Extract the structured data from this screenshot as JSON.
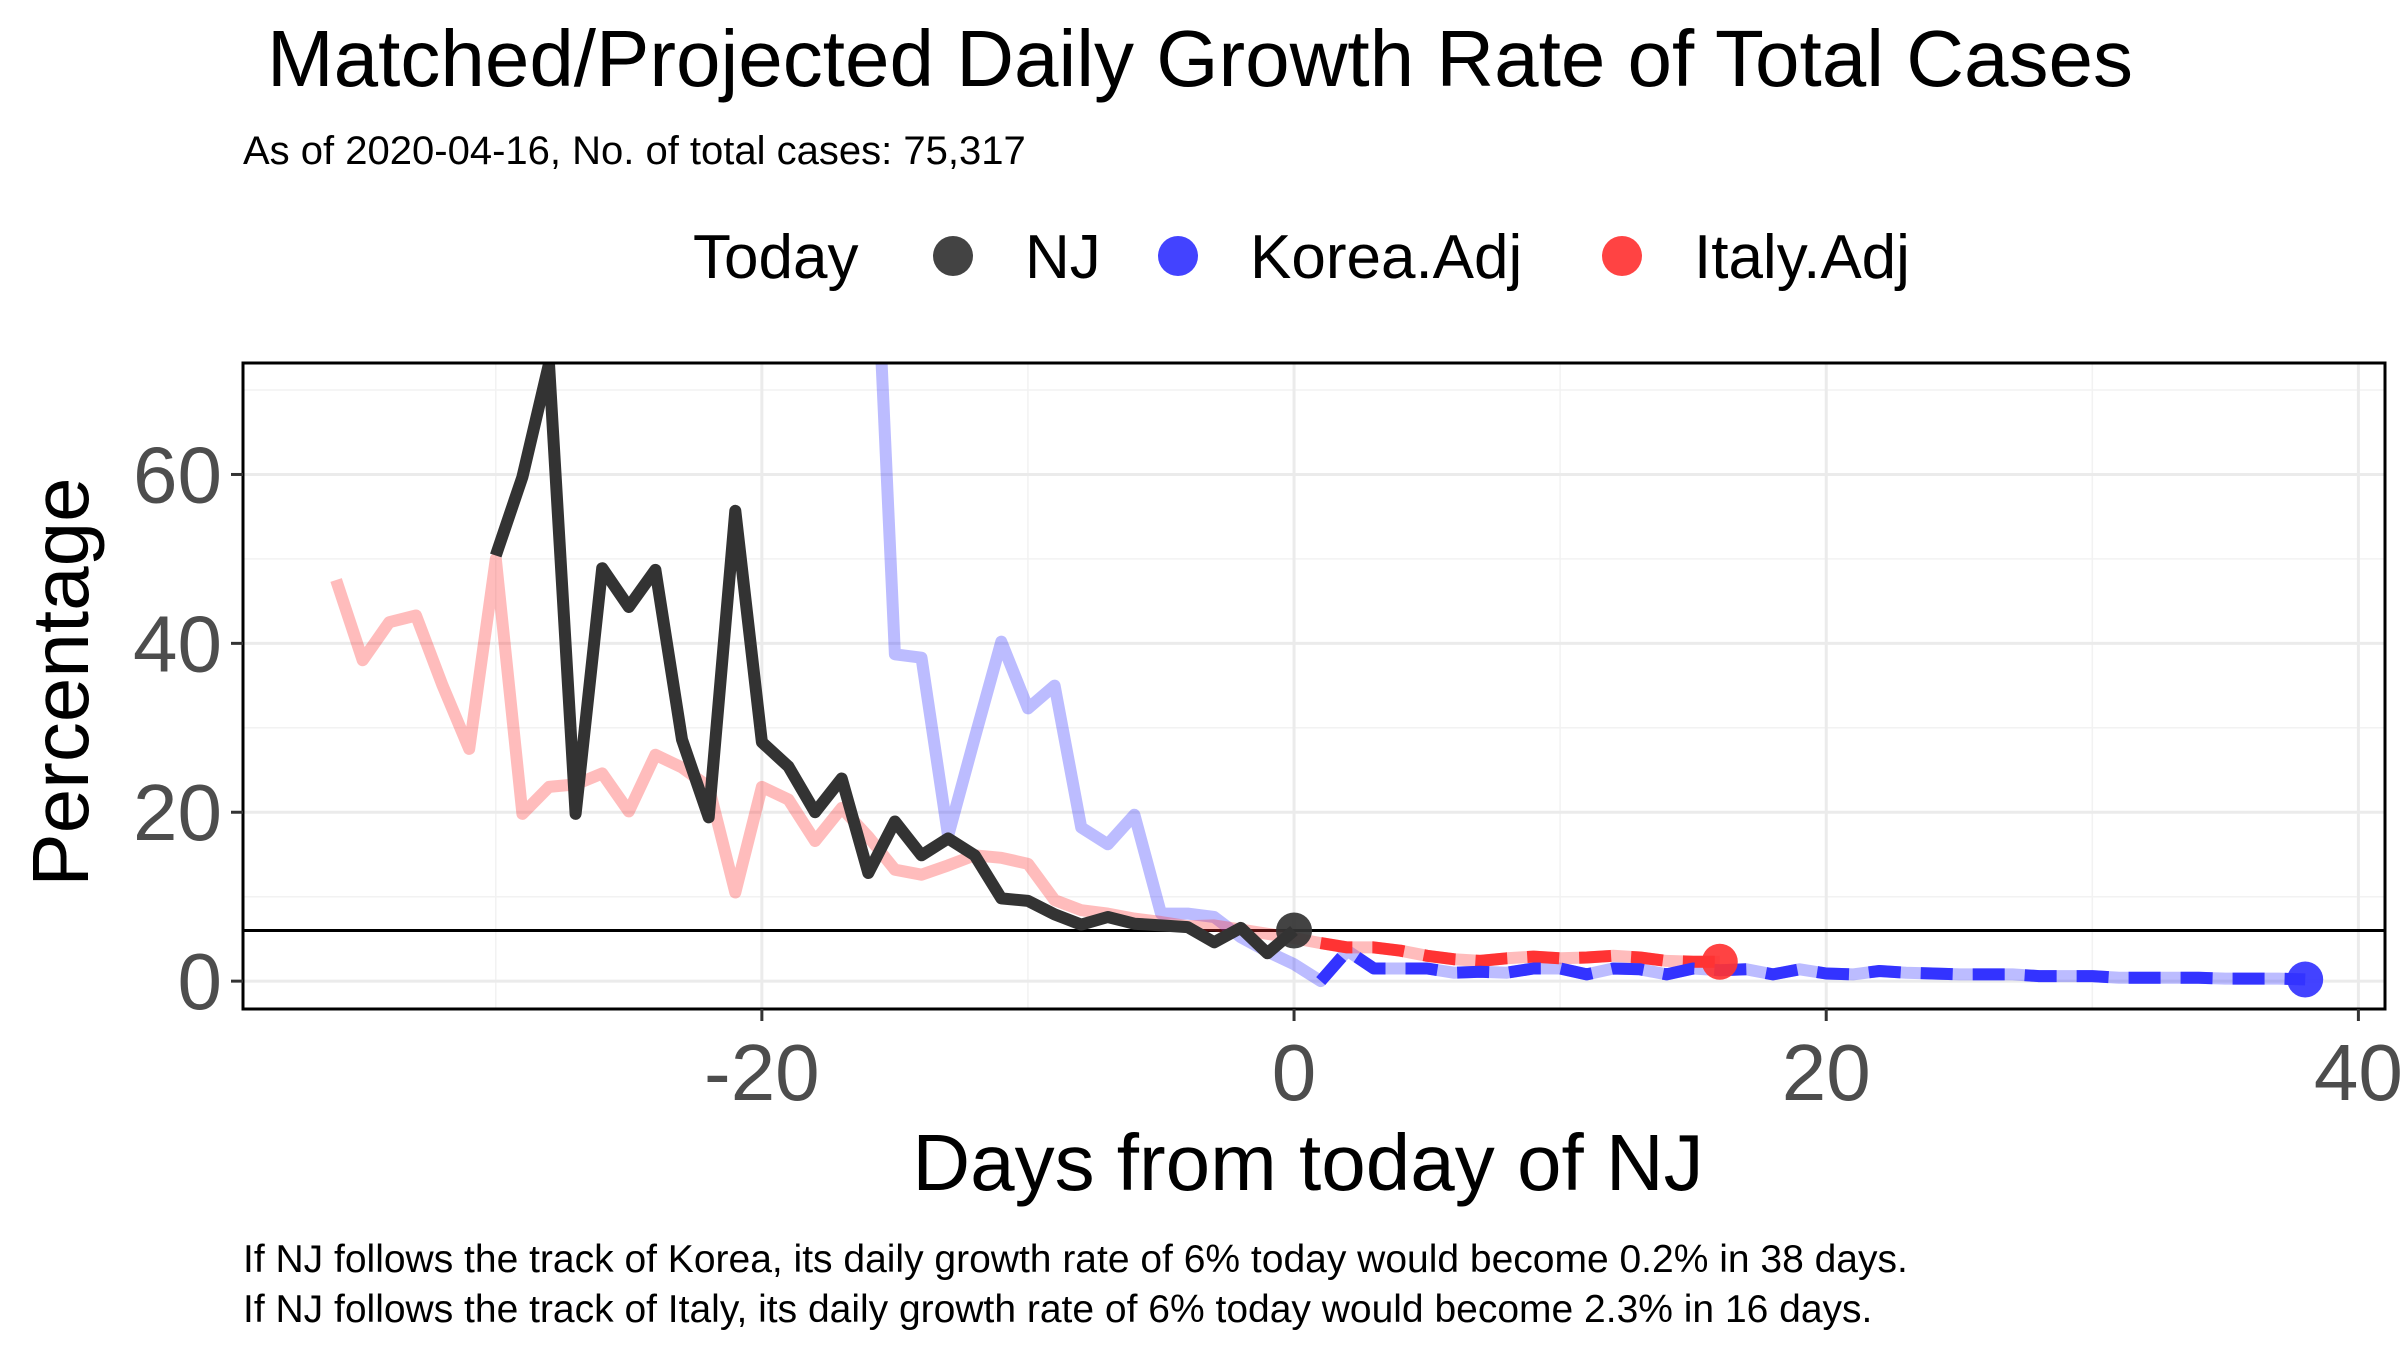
{
  "chart_data": {
    "type": "line",
    "title": "Matched/Projected Daily Growth Rate of Total Cases",
    "subtitle": "As of 2020-04-16, No. of total cases: 75,317",
    "xlabel": "Days from today of NJ",
    "ylabel": "Percentage",
    "xlim": [
      -39.5,
      41
    ],
    "ylim": [
      -3.3,
      73.2
    ],
    "x_ticks": [
      -20,
      0,
      20,
      40
    ],
    "x_tick_labels": [
      "-20",
      "0",
      "20",
      "40"
    ],
    "y_ticks": [
      0,
      20,
      40,
      60
    ],
    "y_tick_labels": [
      "0",
      "20",
      "40",
      "60"
    ],
    "grid": true,
    "legend_position": "top",
    "legend_title": "Today",
    "reference_line_y": 6,
    "series": [
      {
        "name": "NJ",
        "color": "#333333",
        "style": "solid",
        "opacity": 1.0,
        "x": [
          -30,
          -29,
          -28,
          -27,
          -26,
          -25,
          -24,
          -23,
          -22,
          -21,
          -20,
          -19,
          -18,
          -17,
          -16,
          -15,
          -14,
          -13,
          -12,
          -11,
          -10,
          -9,
          -8,
          -7,
          -6,
          -5,
          -4,
          -3,
          -2,
          -1,
          0
        ],
        "y": [
          50.4,
          59.7,
          73.1,
          19.8,
          48.9,
          44.3,
          48.7,
          28.6,
          19.4,
          55.7,
          28.3,
          25.4,
          20.0,
          24.0,
          12.8,
          18.9,
          14.9,
          16.9,
          14.9,
          9.8,
          9.5,
          7.9,
          6.7,
          7.6,
          6.8,
          6.6,
          6.4,
          4.6,
          6.3,
          3.3,
          6.0
        ],
        "today_point": {
          "x": 0,
          "y": 6.0
        }
      },
      {
        "name": "Korea.Adj",
        "color": "#3333ff",
        "style": "solid",
        "opacity": 0.33,
        "x": [
          -15.5,
          -15,
          -14,
          -13,
          -12,
          -11,
          -10,
          -9,
          -8,
          -7,
          -6,
          -5,
          -4,
          -3,
          -2,
          -1,
          0,
          1,
          2,
          3,
          4,
          5,
          6,
          7,
          8,
          9,
          10,
          11,
          12,
          13,
          14,
          15,
          16,
          17,
          18,
          19,
          20,
          21,
          22,
          23,
          24,
          25,
          26,
          27,
          28,
          29,
          30,
          31,
          32,
          33,
          34,
          35,
          36,
          37,
          38
        ],
        "y": [
          73.2,
          38.7,
          38.3,
          17.2,
          28.8,
          40.2,
          32.3,
          35.0,
          18.2,
          16.2,
          19.7,
          8.0,
          8.0,
          7.6,
          5.2,
          3.5,
          2.0,
          0.0,
          3.6,
          1.5,
          1.5,
          1.5,
          1.0,
          1.1,
          1.0,
          1.5,
          1.5,
          0.8,
          1.5,
          1.4,
          0.8,
          1.5,
          1.3,
          1.4,
          0.8,
          1.4,
          0.9,
          0.8,
          1.2,
          1.0,
          0.9,
          0.8,
          0.8,
          0.8,
          0.6,
          0.6,
          0.6,
          0.4,
          0.4,
          0.4,
          0.4,
          0.3,
          0.3,
          0.3,
          0.2
        ]
      },
      {
        "name": "Korea.Adj (projected)",
        "color": "#3333ff",
        "style": "dashed",
        "opacity": 1.0,
        "x": [
          1,
          2,
          3,
          4,
          5,
          6,
          7,
          8,
          9,
          10,
          11,
          12,
          13,
          14,
          15,
          16,
          17,
          18,
          19,
          20,
          21,
          22,
          23,
          24,
          25,
          26,
          27,
          28,
          29,
          30,
          31,
          32,
          33,
          34,
          35,
          36,
          37,
          38
        ],
        "y": [
          0.0,
          3.6,
          1.5,
          1.5,
          1.5,
          1.0,
          1.1,
          1.0,
          1.5,
          1.5,
          0.8,
          1.5,
          1.4,
          0.8,
          1.5,
          1.3,
          1.4,
          0.8,
          1.4,
          0.9,
          0.8,
          1.2,
          1.0,
          0.9,
          0.8,
          0.8,
          0.8,
          0.6,
          0.6,
          0.6,
          0.4,
          0.4,
          0.4,
          0.4,
          0.3,
          0.3,
          0.3,
          0.2
        ],
        "today_point": {
          "x": 38,
          "y": 0.2
        }
      },
      {
        "name": "Italy.Adj",
        "color": "#ff3333",
        "style": "solid",
        "opacity": 0.33,
        "x": [
          -36,
          -35,
          -34,
          -33,
          -32,
          -31,
          -30,
          -29,
          -28,
          -27,
          -26,
          -25,
          -24,
          -23,
          -22,
          -21,
          -20,
          -19,
          -18,
          -17,
          -16,
          -15,
          -14,
          -13,
          -12,
          -11,
          -10,
          -9,
          -8,
          -7,
          -6,
          -5,
          -4,
          -3,
          -2,
          -1,
          0,
          1,
          2,
          3,
          4,
          5,
          6,
          7,
          8,
          9,
          10,
          11,
          12,
          13,
          14,
          15,
          16
        ],
        "y": [
          47.5,
          38.0,
          42.5,
          43.3,
          35.0,
          27.5,
          50.0,
          19.8,
          23.0,
          23.3,
          24.6,
          20.1,
          26.8,
          25.3,
          23.0,
          10.5,
          23.0,
          21.5,
          16.6,
          20.5,
          17.1,
          13.2,
          12.6,
          13.7,
          14.9,
          14.6,
          13.9,
          9.6,
          8.4,
          8.0,
          7.4,
          7.0,
          6.5,
          6.6,
          6.1,
          5.6,
          5.1,
          4.5,
          4.0,
          4.0,
          3.6,
          3.0,
          2.6,
          2.4,
          2.7,
          2.9,
          2.7,
          2.8,
          3.0,
          2.8,
          2.4,
          2.3,
          2.3
        ]
      },
      {
        "name": "Italy.Adj (projected)",
        "color": "#ff3333",
        "style": "dashed",
        "opacity": 1.0,
        "x": [
          1,
          2,
          3,
          4,
          5,
          6,
          7,
          8,
          9,
          10,
          11,
          12,
          13,
          14,
          15,
          16
        ],
        "y": [
          4.5,
          4.0,
          4.0,
          3.6,
          3.0,
          2.6,
          2.4,
          2.7,
          2.9,
          2.7,
          2.8,
          3.0,
          2.8,
          2.4,
          2.3,
          2.3
        ],
        "today_point": {
          "x": 16,
          "y": 2.3
        }
      }
    ],
    "legend": [
      {
        "label": "NJ",
        "color": "#333333"
      },
      {
        "label": "Korea.Adj",
        "color": "#3333ff"
      },
      {
        "label": "Italy.Adj",
        "color": "#ff3333"
      }
    ],
    "annotations": [
      "If NJ follows the track of Korea, its daily growth rate of 6% today would become 0.2% in 38 days.",
      "If NJ follows the track of Italy, its daily growth rate of 6% today would become 2.3% in 16 days."
    ]
  }
}
